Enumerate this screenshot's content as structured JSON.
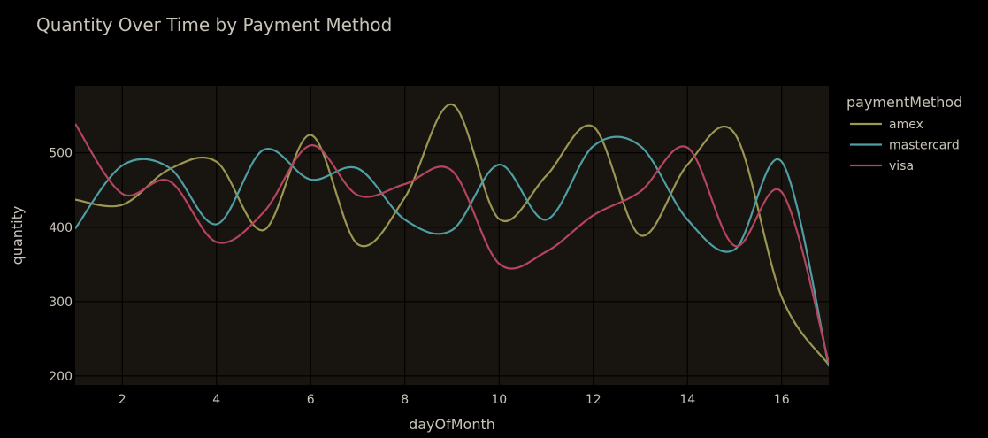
{
  "chart_data": {
    "type": "line",
    "title": "Quantity Over Time by Payment Method",
    "xlabel": "dayOfMonth",
    "ylabel": "quantity",
    "xlim": [
      1,
      17
    ],
    "ylim": [
      188,
      590
    ],
    "xticks": [
      2,
      4,
      6,
      8,
      10,
      12,
      14,
      16
    ],
    "yticks": [
      200,
      300,
      400,
      500
    ],
    "grid": true,
    "legend_title": "paymentMethod",
    "legend_position": "right",
    "x": [
      1,
      2,
      3,
      4,
      5,
      6,
      7,
      8,
      9,
      10,
      11,
      12,
      13,
      14,
      15,
      16,
      17
    ],
    "series": [
      {
        "name": "amex",
        "color": "#9a9653",
        "values": [
          437,
          430,
          478,
          488,
          396,
          524,
          377,
          440,
          565,
          411,
          469,
          535,
          389,
          484,
          526,
          306,
          215
        ]
      },
      {
        "name": "mastercard",
        "color": "#4e9ea6",
        "values": [
          398,
          483,
          480,
          404,
          504,
          464,
          479,
          410,
          396,
          484,
          410,
          509,
          509,
          410,
          370,
          488,
          213
        ]
      },
      {
        "name": "visa",
        "color": "#b5455f",
        "values": [
          539,
          445,
          462,
          380,
          420,
          510,
          443,
          458,
          476,
          351,
          367,
          416,
          448,
          507,
          375,
          447,
          218
        ]
      }
    ]
  },
  "colors": {
    "plot_background": "#18140f",
    "paper_background": "#000000",
    "grid": "#000000",
    "text": "#c9c4b8"
  }
}
